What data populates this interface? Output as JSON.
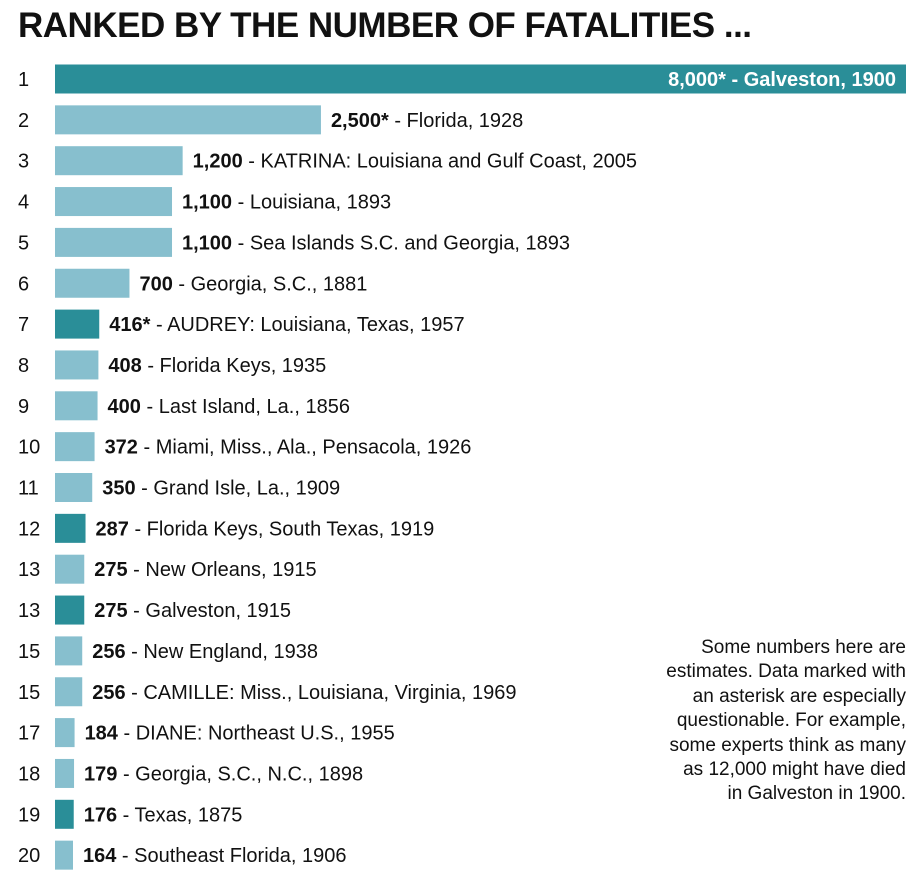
{
  "title": "RANKED BY THE NUMBER OF FATALITIES ...",
  "note": "Some numbers here are estimates. Data marked with an asterisk are especially questionable. For example, some experts think as many as 12,000 might have died in Galveston in 1900.",
  "colors": {
    "dark": "#2a8e98",
    "light": "#87bfce",
    "text": "#111111",
    "label_on_bar": "#ffffff"
  },
  "chart_data": {
    "type": "bar",
    "orientation": "horizontal",
    "title": "RANKED BY THE NUMBER OF FATALITIES ...",
    "xlim": [
      0,
      8000
    ],
    "grid": false,
    "legend": "none",
    "rows": [
      {
        "rank": "1",
        "value": 8000,
        "label": "8,000*",
        "desc": " - Galveston, 1900",
        "highlight": true
      },
      {
        "rank": "2",
        "value": 2500,
        "label": "2,500*",
        "desc": " - Florida, 1928",
        "highlight": false
      },
      {
        "rank": "3",
        "value": 1200,
        "label": "1,200",
        "desc": " - KATRINA: Louisiana and Gulf Coast, 2005",
        "highlight": false
      },
      {
        "rank": "4",
        "value": 1100,
        "label": "1,100",
        "desc": " - Louisiana, 1893",
        "highlight": false
      },
      {
        "rank": "5",
        "value": 1100,
        "label": "1,100",
        "desc": " - Sea Islands S.C. and Georgia, 1893",
        "highlight": false
      },
      {
        "rank": "6",
        "value": 700,
        "label": "700",
        "desc": " - Georgia, S.C., 1881",
        "highlight": false
      },
      {
        "rank": "7",
        "value": 416,
        "label": "416*",
        "desc": " - AUDREY: Louisiana, Texas, 1957",
        "highlight": true
      },
      {
        "rank": "8",
        "value": 408,
        "label": "408",
        "desc": " - Florida Keys, 1935",
        "highlight": false
      },
      {
        "rank": "9",
        "value": 400,
        "label": "400",
        "desc": " - Last Island, La., 1856",
        "highlight": false
      },
      {
        "rank": "10",
        "value": 372,
        "label": "372",
        "desc": " - Miami, Miss., Ala., Pensacola, 1926",
        "highlight": false
      },
      {
        "rank": "11",
        "value": 350,
        "label": "350",
        "desc": " - Grand Isle, La., 1909",
        "highlight": false
      },
      {
        "rank": "12",
        "value": 287,
        "label": "287",
        "desc": " - Florida Keys, South Texas, 1919",
        "highlight": true
      },
      {
        "rank": "13",
        "value": 275,
        "label": "275",
        "desc": " - New Orleans, 1915",
        "highlight": false
      },
      {
        "rank": "13",
        "value": 275,
        "label": "275",
        "desc": " - Galveston, 1915",
        "highlight": true
      },
      {
        "rank": "15",
        "value": 256,
        "label": "256",
        "desc": " - New England, 1938",
        "highlight": false
      },
      {
        "rank": "15",
        "value": 256,
        "label": "256",
        "desc": " - CAMILLE: Miss., Louisiana, Virginia, 1969",
        "highlight": false
      },
      {
        "rank": "17",
        "value": 184,
        "label": "184",
        "desc": " - DIANE: Northeast U.S., 1955",
        "highlight": false
      },
      {
        "rank": "18",
        "value": 179,
        "label": "179",
        "desc": " - Georgia, S.C., N.C., 1898",
        "highlight": false
      },
      {
        "rank": "19",
        "value": 176,
        "label": "176",
        "desc": " - Texas, 1875",
        "highlight": true
      },
      {
        "rank": "20",
        "value": 164,
        "label": "164",
        "desc": " - Southeast Florida, 1906",
        "highlight": false
      }
    ]
  }
}
